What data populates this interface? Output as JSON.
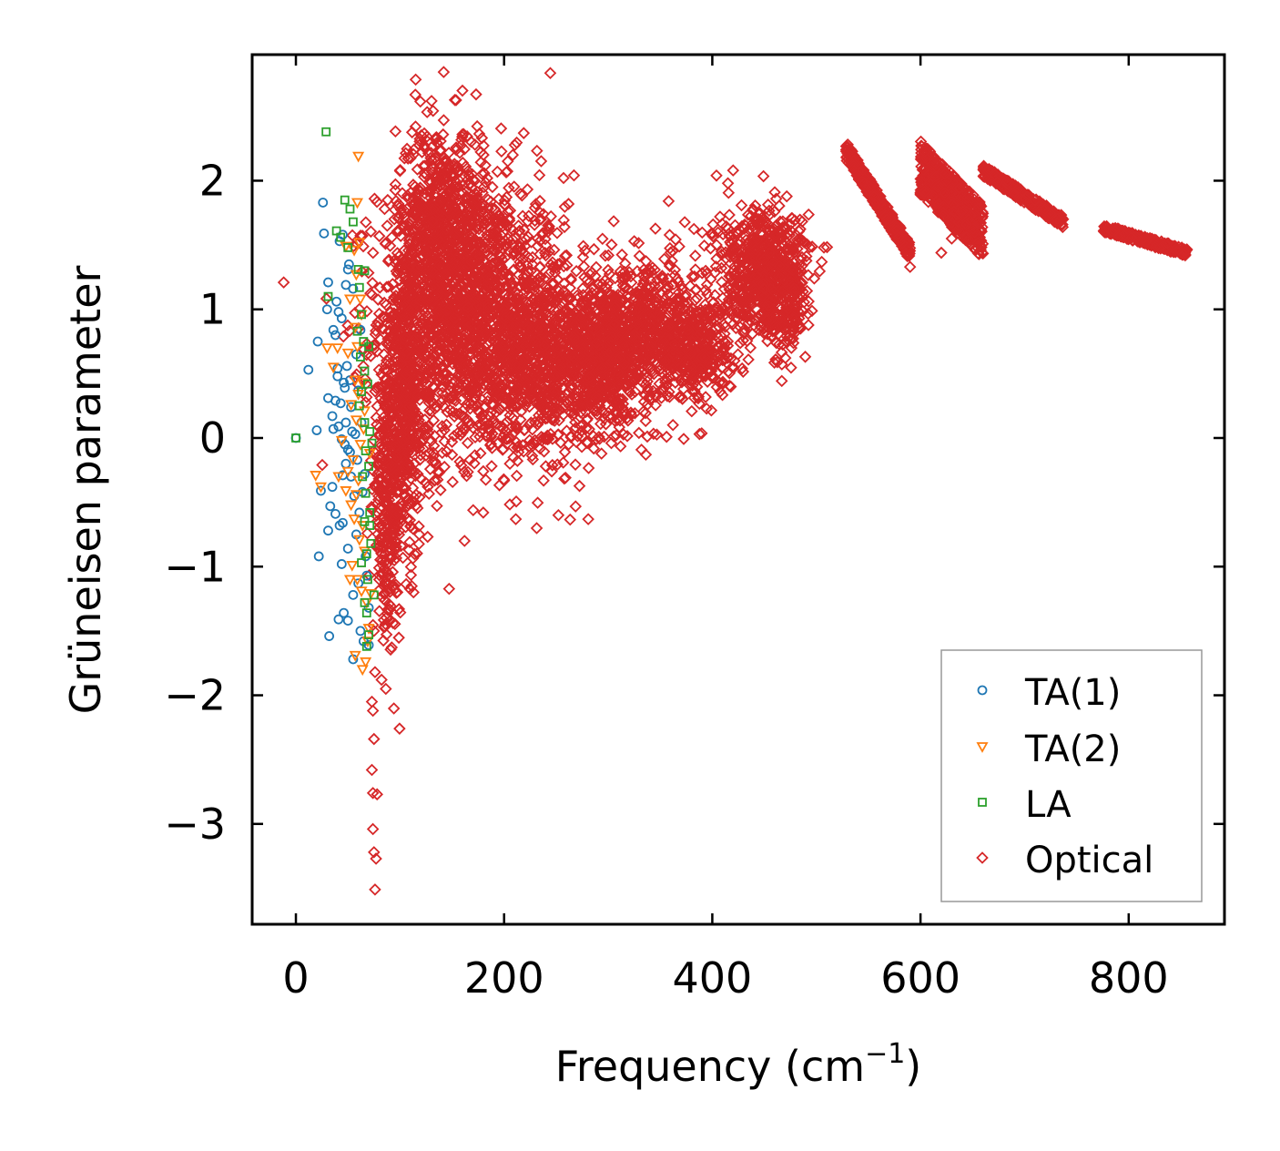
{
  "chart_data": {
    "type": "scatter",
    "title": "",
    "xlabel": "Frequency (cm",
    "xlabel_sup": "−1",
    "xlabel_end": ")",
    "ylabel": "Grüneisen parameter",
    "xlim": [
      -42,
      892
    ],
    "ylim": [
      -3.78,
      2.98
    ],
    "xticks": [
      0,
      200,
      400,
      600,
      800
    ],
    "xtick_labels": [
      "0",
      "200",
      "400",
      "600",
      "800"
    ],
    "yticks": [
      -3,
      -2,
      -1,
      0,
      1,
      2
    ],
    "ytick_labels": [
      "−3",
      "−2",
      "−1",
      "0",
      "1",
      "2"
    ],
    "legend_position": "lower-right",
    "series": [
      {
        "name": "TA(1)",
        "marker": "circle",
        "color": "#1f77b4",
        "points": [
          [
            0,
            0
          ],
          [
            26,
            1.83
          ],
          [
            27,
            1.59
          ],
          [
            31,
            1.21
          ],
          [
            36,
            0.84
          ],
          [
            38,
            0.8
          ],
          [
            39,
            1.06
          ],
          [
            41,
            0.98
          ],
          [
            40,
            0.54
          ],
          [
            44,
            0.93
          ],
          [
            42,
            1.53
          ],
          [
            45,
            1.58
          ],
          [
            48,
            1.19
          ],
          [
            50,
            1.31
          ],
          [
            51,
            1.35
          ],
          [
            49,
            0.56
          ],
          [
            52,
            0.45
          ],
          [
            47,
            0.39
          ],
          [
            43,
            0.27
          ],
          [
            38,
            0.29
          ],
          [
            31,
            0.31
          ],
          [
            21,
            0.75
          ],
          [
            12,
            0.53
          ],
          [
            20,
            0.06
          ],
          [
            36,
            0.07
          ],
          [
            41,
            0.09
          ],
          [
            44,
            -0.01
          ],
          [
            47,
            -0.05
          ],
          [
            50,
            -0.09
          ],
          [
            52,
            -0.11
          ],
          [
            48,
            -0.2
          ],
          [
            45,
            -0.29
          ],
          [
            35,
            -0.38
          ],
          [
            33,
            -0.53
          ],
          [
            24,
            -0.41
          ],
          [
            38,
            -0.59
          ],
          [
            42,
            -0.68
          ],
          [
            45,
            -0.66
          ],
          [
            31,
            -0.72
          ],
          [
            50,
            -0.86
          ],
          [
            44,
            -0.98
          ],
          [
            22,
            -0.92
          ],
          [
            55,
            -1.22
          ],
          [
            60,
            -1.13
          ],
          [
            46,
            -1.36
          ],
          [
            41,
            -1.41
          ],
          [
            50,
            -1.42
          ],
          [
            32,
            -1.54
          ],
          [
            55,
            -1.72
          ],
          [
            62,
            -1.5
          ],
          [
            65,
            -1.58
          ],
          [
            70,
            -1.32
          ],
          [
            58,
            -0.75
          ],
          [
            61,
            -0.58
          ],
          [
            64,
            -0.42
          ],
          [
            57,
            0.03
          ],
          [
            53,
            0.24
          ],
          [
            58,
            0.65
          ],
          [
            62,
            0.84
          ],
          [
            55,
            1.16
          ],
          [
            60,
            0.37
          ],
          [
            48,
            0.12
          ],
          [
            46,
            0.43
          ],
          [
            53,
            -0.3
          ],
          [
            56,
            -0.45
          ],
          [
            66,
            -0.28
          ],
          [
            67,
            -0.92
          ],
          [
            68,
            -1.07
          ],
          [
            70,
            -1.61
          ],
          [
            35,
            0.17
          ],
          [
            40,
            0.48
          ],
          [
            30,
            1.0
          ],
          [
            63,
            0.12
          ],
          [
            59,
            -0.17
          ],
          [
            54,
            0.05
          ]
        ]
      },
      {
        "name": "TA(2)",
        "marker": "triangle_down",
        "color": "#ff7f0e",
        "points": [
          [
            60,
            2.19
          ],
          [
            59,
            1.83
          ],
          [
            61,
            1.52
          ],
          [
            56,
            1.46
          ],
          [
            58,
            1.27
          ],
          [
            62,
            1.08
          ],
          [
            63,
            0.96
          ],
          [
            59,
            0.71
          ],
          [
            50,
            0.66
          ],
          [
            40,
            0.7
          ],
          [
            30,
            0.7
          ],
          [
            64,
            0.43
          ],
          [
            57,
            0.45
          ],
          [
            60,
            0.34
          ],
          [
            53,
            0.26
          ],
          [
            65,
            0.07
          ],
          [
            58,
            0.14
          ],
          [
            44,
            -0.02
          ],
          [
            55,
            -0.17
          ],
          [
            50,
            -0.26
          ],
          [
            41,
            -0.3
          ],
          [
            19,
            -0.29
          ],
          [
            48,
            -0.41
          ],
          [
            58,
            -0.44
          ],
          [
            53,
            -0.52
          ],
          [
            56,
            -0.63
          ],
          [
            61,
            -0.79
          ],
          [
            64,
            -0.68
          ],
          [
            66,
            -0.88
          ],
          [
            54,
            -0.99
          ],
          [
            59,
            -1.1
          ],
          [
            63,
            -1.19
          ],
          [
            52,
            -1.1
          ],
          [
            68,
            -1.28
          ],
          [
            70,
            -1.48
          ],
          [
            69,
            -1.58
          ],
          [
            67,
            -1.74
          ],
          [
            64,
            -1.8
          ],
          [
            57,
            -1.69
          ],
          [
            72,
            -1.21
          ],
          [
            24,
            -0.38
          ],
          [
            36,
            0.55
          ],
          [
            62,
            -0.05
          ],
          [
            66,
            0.21
          ],
          [
            71,
            -0.12
          ],
          [
            48,
            1.49
          ],
          [
            52,
            1.08
          ],
          [
            57,
            0.86
          ],
          [
            60,
            -0.33
          ]
        ]
      },
      {
        "name": "LA",
        "marker": "square",
        "color": "#2ca02c",
        "points": [
          [
            0,
            0
          ],
          [
            29,
            2.38
          ],
          [
            47,
            1.85
          ],
          [
            52,
            1.78
          ],
          [
            55,
            1.68
          ],
          [
            39,
            1.61
          ],
          [
            43,
            1.56
          ],
          [
            50,
            1.48
          ],
          [
            60,
            1.31
          ],
          [
            61,
            1.17
          ],
          [
            31,
            1.1
          ],
          [
            63,
            0.96
          ],
          [
            65,
            0.75
          ],
          [
            70,
            0.71
          ],
          [
            66,
            0.52
          ],
          [
            69,
            0.42
          ],
          [
            63,
            0.36
          ],
          [
            61,
            0.25
          ],
          [
            66,
            0.12
          ],
          [
            71,
            0.05
          ],
          [
            73,
            -0.04
          ],
          [
            67,
            -0.1
          ],
          [
            70,
            -0.22
          ],
          [
            64,
            -0.3
          ],
          [
            67,
            -0.43
          ],
          [
            71,
            -0.58
          ],
          [
            66,
            -0.65
          ],
          [
            72,
            -0.82
          ],
          [
            68,
            -0.9
          ],
          [
            63,
            -0.97
          ],
          [
            69,
            -1.1
          ],
          [
            75,
            -1.22
          ],
          [
            66,
            -1.28
          ],
          [
            68,
            -1.36
          ],
          [
            70,
            -1.53
          ],
          [
            68,
            -1.62
          ],
          [
            71,
            -0.68
          ],
          [
            62,
            0.63
          ],
          [
            59,
            0.83
          ],
          [
            66,
            1.3
          ]
        ]
      },
      {
        "name": "Optical",
        "marker": "diamond",
        "color": "#d62728",
        "clusters": [
          {
            "cx": 170,
            "cy": 0.95,
            "sx": 45,
            "sy": 0.55,
            "n": 1500
          },
          {
            "cx": 140,
            "cy": 1.55,
            "sx": 22,
            "sy": 0.45,
            "n": 700
          },
          {
            "cx": 105,
            "cy": 0.2,
            "sx": 12,
            "sy": 0.55,
            "n": 500
          },
          {
            "cx": 88,
            "cy": -0.55,
            "sx": 7,
            "sy": 0.5,
            "n": 280
          },
          {
            "cx": 245,
            "cy": 0.6,
            "sx": 35,
            "sy": 0.35,
            "n": 900
          },
          {
            "cx": 300,
            "cy": 0.65,
            "sx": 20,
            "sy": 0.25,
            "n": 450
          },
          {
            "cx": 340,
            "cy": 0.85,
            "sx": 25,
            "sy": 0.3,
            "n": 500
          },
          {
            "cx": 385,
            "cy": 0.7,
            "sx": 18,
            "sy": 0.2,
            "n": 350
          },
          {
            "cx": 445,
            "cy": 1.3,
            "sx": 22,
            "sy": 0.25,
            "n": 600
          },
          {
            "cx": 470,
            "cy": 1.1,
            "sx": 10,
            "sy": 0.25,
            "n": 200
          }
        ],
        "bands": [
          {
            "x0": 528,
            "x1": 590,
            "y0": 2.24,
            "y1": 1.45,
            "w": 0.14,
            "n": 350
          },
          {
            "x0": 600,
            "x1": 660,
            "y0": 2.1,
            "y1": 1.6,
            "w": 0.42,
            "n": 600
          },
          {
            "x0": 660,
            "x1": 737,
            "y0": 2.08,
            "y1": 1.68,
            "w": 0.09,
            "n": 300
          },
          {
            "x0": 776,
            "x1": 856,
            "y0": 1.63,
            "y1": 1.44,
            "w": 0.06,
            "n": 280
          }
        ],
        "outliers": [
          [
            160,
            2.7
          ],
          [
            142,
            2.47
          ],
          [
            160,
            2.36
          ],
          [
            172,
            2.28
          ],
          [
            182,
            2.12
          ],
          [
            404,
            2.04
          ],
          [
            420,
            2.08
          ],
          [
            415,
            1.98
          ],
          [
            460,
            1.91
          ],
          [
            325,
            1.53
          ],
          [
            290,
            1.2
          ],
          [
            260,
            1.42
          ],
          [
            113,
            -1.2
          ],
          [
            162,
            -0.8
          ],
          [
            180,
            -0.58
          ],
          [
            76,
            -1.82
          ],
          [
            73,
            -2.05
          ],
          [
            74,
            -2.12
          ],
          [
            75,
            -2.34
          ],
          [
            73,
            -2.58
          ],
          [
            74,
            -2.76
          ],
          [
            78,
            -2.77
          ],
          [
            74,
            -3.04
          ],
          [
            75,
            -3.22
          ],
          [
            77,
            -3.27
          ],
          [
            76,
            -3.51
          ],
          [
            590,
            1.33
          ],
          [
            620,
            1.44
          ],
          [
            630,
            1.55
          ],
          [
            652,
            1.6
          ],
          [
            75,
            -1.5
          ],
          [
            80,
            -1.1
          ],
          [
            150,
            -0.13
          ],
          [
            240,
            -0.22
          ],
          [
            262,
            -0.05
          ],
          [
            303,
            -0.04
          ],
          [
            340,
            0.3
          ],
          [
            410,
            0.42
          ],
          [
            476,
            0.7
          ]
        ]
      }
    ]
  },
  "legend": {
    "items": [
      {
        "label": "TA(1)",
        "marker": "circle",
        "color": "#1f77b4"
      },
      {
        "label": "TA(2)",
        "marker": "triangle_down",
        "color": "#ff7f0e"
      },
      {
        "label": "LA",
        "marker": "square",
        "color": "#2ca02c"
      },
      {
        "label": "Optical",
        "marker": "diamond",
        "color": "#d62728"
      }
    ]
  }
}
